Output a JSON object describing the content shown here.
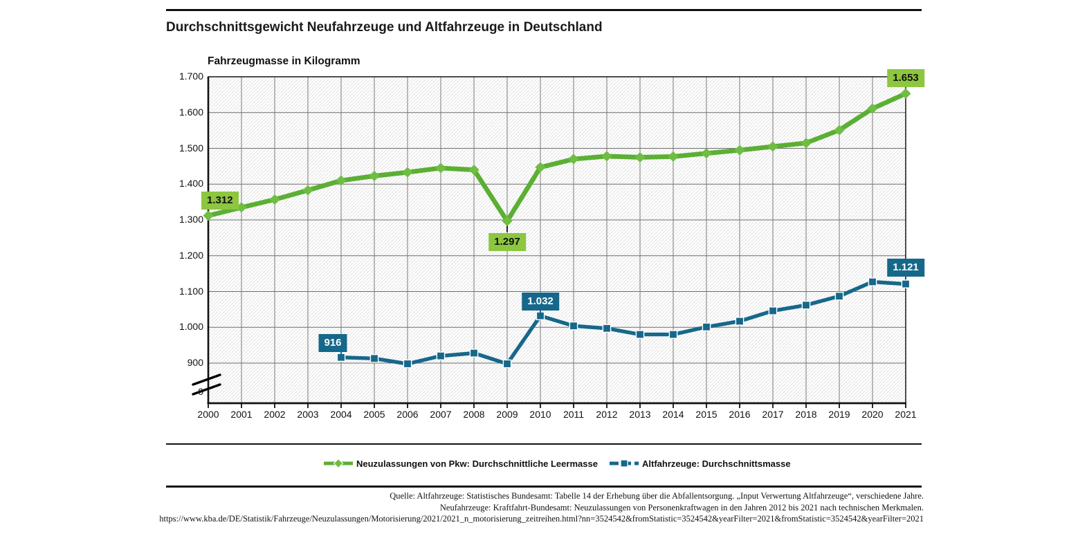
{
  "title": "Durchschnittsgewicht Neufahrzeuge und Altfahrzeuge in Deutschland",
  "colors": {
    "green": "#5BAF34",
    "green-light": "#6FBE43",
    "green-label-bg": "#8DC63F",
    "blue": "#16688A",
    "blue-label-bg": "#16688A",
    "grid": "#7a7a7a",
    "hatch": "#e1e1e1",
    "axis": "#111111"
  },
  "chart_data": {
    "type": "line",
    "title": "Durchschnittsgewicht Neufahrzeuge und Altfahrzeuge in Deutschland",
    "ylabel": "Fahrzeugmasse in Kilogramm",
    "xlabel": "",
    "grid": true,
    "axis_break": true,
    "ylim": [
      900,
      1700
    ],
    "y_ticks": [
      "1.700",
      "1.600",
      "1.500",
      "1.400",
      "1.300",
      "1.200",
      "1.100",
      "1.000",
      "900"
    ],
    "y_zero_tick": "0",
    "categories": [
      "2000",
      "2001",
      "2002",
      "2003",
      "2004",
      "2005",
      "2006",
      "2007",
      "2008",
      "2009",
      "2010",
      "2011",
      "2012",
      "2013",
      "2014",
      "2015",
      "2016",
      "2017",
      "2018",
      "2019",
      "2020",
      "2021"
    ],
    "series": [
      {
        "name": "Neuzulassungen von Pkw: Durchschnittliche Leermasse",
        "marker": "diamond",
        "color": "#5BAF34",
        "values": [
          1312,
          1335,
          1357,
          1383,
          1410,
          1423,
          1433,
          1445,
          1440,
          1297,
          1447,
          1470,
          1478,
          1475,
          1477,
          1486,
          1495,
          1505,
          1515,
          1551,
          1611,
          1653
        ]
      },
      {
        "name": "Altfahrzeuge: Durchschnittsmasse",
        "marker": "square",
        "color": "#16688A",
        "values": [
          null,
          null,
          null,
          null,
          916,
          913,
          898,
          920,
          928,
          898,
          1032,
          1004,
          997,
          980,
          980,
          1001,
          1017,
          1046,
          1062,
          1087,
          1127,
          1121
        ]
      }
    ],
    "annotations": [
      {
        "series": 0,
        "year": "2000",
        "value": 1312,
        "text": "1.312",
        "placement": "above-left"
      },
      {
        "series": 0,
        "year": "2009",
        "value": 1297,
        "text": "1.297",
        "placement": "below",
        "connector": true
      },
      {
        "series": 0,
        "year": "2021",
        "value": 1653,
        "text": "1.653",
        "placement": "above",
        "dy": -1
      },
      {
        "series": 1,
        "year": "2004",
        "value": 916,
        "text": "916",
        "placement": "above",
        "dx": -12,
        "connector": true
      },
      {
        "series": 1,
        "year": "2010",
        "value": 1032,
        "text": "1.032",
        "placement": "above",
        "connector": true
      },
      {
        "series": 1,
        "year": "2021",
        "value": 1121,
        "text": "1.121",
        "placement": "above",
        "dy": -3
      }
    ],
    "legend_position": "bottom"
  },
  "legend": {
    "items": [
      {
        "label": "Neuzulassungen von Pkw: Durchschnittliche Leermasse"
      },
      {
        "label": "Altfahrzeuge: Durchschnittsmasse"
      }
    ]
  },
  "footer": {
    "lines": [
      "Quelle: Altfahrzeuge: Statistisches Bundesamt: Tabelle 14 der Erhebung über die Abfallentsorgung. „Input Verwertung Altfahrzeuge“, verschiedene Jahre.",
      "Neufahrzeuge: Kraftfahrt-Bundesamt: Neuzulassungen von Personenkraftwagen in den Jahren 2012 bis 2021 nach technischen Merkmalen.",
      "https://www.kba.de/DE/Statistik/Fahrzeuge/Neuzulassungen/Motorisierung/2021/2021_n_motorisierung_zeitreihen.html?nn=3524542&fromStatistic=3524542&yearFilter=2021&fromStatistic=3524542&yearFilter=2021"
    ]
  }
}
